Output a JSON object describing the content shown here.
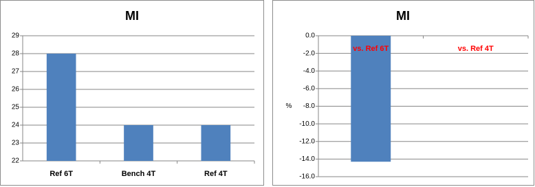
{
  "chart_data": [
    {
      "type": "bar",
      "title": "MI",
      "categories": [
        "Ref 6T",
        "Bench 4T",
        "Ref 4T"
      ],
      "values": [
        28,
        24,
        24
      ],
      "color": "#4f81bd",
      "ylim": [
        22,
        29
      ],
      "yticks": [
        22,
        23,
        24,
        25,
        26,
        27,
        28,
        29
      ],
      "grid": true,
      "category_label_color": "#000000"
    },
    {
      "type": "bar",
      "title": "MI",
      "ylabel": "%",
      "categories": [
        "vs. Ref 6T",
        "vs. Ref 4T"
      ],
      "values": [
        -14.3,
        0
      ],
      "color": "#4f81bd",
      "ylim": [
        -16,
        0
      ],
      "yticks": [
        {
          "value": -16,
          "label": "-16.0"
        },
        {
          "value": -14,
          "label": "-14.0"
        },
        {
          "value": -12,
          "label": "-12.0"
        },
        {
          "value": -10,
          "label": "-10.0"
        },
        {
          "value": -8,
          "label": "-8.0"
        },
        {
          "value": -6,
          "label": "-6.0"
        },
        {
          "value": -4,
          "label": "-4.0"
        },
        {
          "value": -2,
          "label": "-2.0"
        },
        {
          "value": 0,
          "label": "0.0"
        }
      ],
      "grid": true,
      "category_label_color": "#ff0000"
    }
  ]
}
